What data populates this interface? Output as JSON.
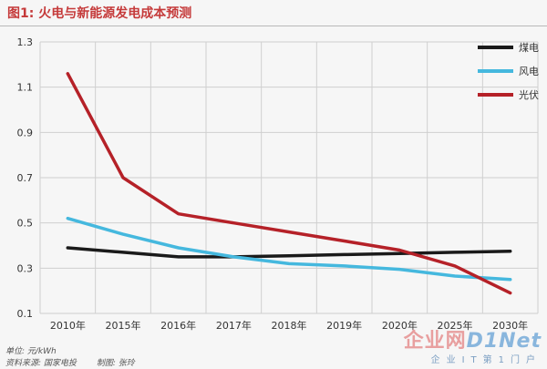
{
  "header": {
    "title": "图1: 火电与新能源发电成本预测"
  },
  "footer": {
    "unit": "单位: 元/kWh",
    "source": "资料来源: 国家电投",
    "author": "制图: 张玲"
  },
  "watermark": {
    "brand_cn": "企业网",
    "brand_en": "D1Net",
    "tagline": "企业IT第1门户"
  },
  "colors": {
    "coal": "#1a1a1a",
    "wind": "#45b8de",
    "solar": "#b52128",
    "grid": "#cfcfcf"
  },
  "chart_data": {
    "type": "line",
    "categories": [
      "2010年",
      "2015年",
      "2016年",
      "2017年",
      "2018年",
      "2019年",
      "2020年",
      "2025年",
      "2030年"
    ],
    "ylim": [
      0.1,
      1.3
    ],
    "yticks": [
      0.1,
      0.3,
      0.5,
      0.7,
      0.9,
      1.1,
      1.3
    ],
    "ytick_labels": [
      "0.1",
      "0.3",
      "0.5",
      "0.7",
      "0.9",
      "1.1",
      "1.3"
    ],
    "grid": true,
    "legend_position": "top-right",
    "series": [
      {
        "name": "煤电",
        "color_key": "coal",
        "values": [
          0.39,
          0.37,
          0.35,
          0.35,
          0.355,
          0.36,
          0.365,
          0.37,
          0.375
        ]
      },
      {
        "name": "风电",
        "color_key": "wind",
        "values": [
          0.52,
          0.45,
          0.39,
          0.35,
          0.32,
          0.31,
          0.295,
          0.265,
          0.25
        ]
      },
      {
        "name": "光伏",
        "color_key": "solar",
        "values": [
          1.16,
          0.7,
          0.54,
          0.5,
          0.46,
          0.42,
          0.38,
          0.31,
          0.19
        ]
      }
    ]
  }
}
